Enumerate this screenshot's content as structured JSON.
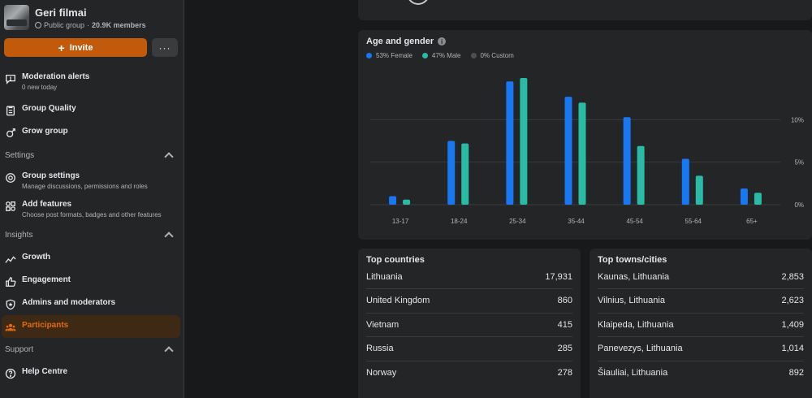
{
  "group": {
    "name": "Geri filmai",
    "privacy": "Public group",
    "separator": "·",
    "members": "20.9K members"
  },
  "actions": {
    "invite_label": "Invite",
    "more_label": "···"
  },
  "nav": {
    "moderation": {
      "label": "Moderation alerts",
      "sub": "0 new today"
    },
    "quality": {
      "label": "Group Quality"
    },
    "grow": {
      "label": "Grow group"
    },
    "settings_section": "Settings",
    "group_settings": {
      "label": "Group settings",
      "sub": "Manage discussions, permissions and roles"
    },
    "add_features": {
      "label": "Add features",
      "sub": "Choose post formats, badges and other features"
    },
    "insights_section": "Insights",
    "growth": {
      "label": "Growth"
    },
    "engagement": {
      "label": "Engagement"
    },
    "admins": {
      "label": "Admins and moderators"
    },
    "participants": {
      "label": "Participants"
    },
    "support_section": "Support",
    "help": {
      "label": "Help Centre"
    }
  },
  "colors": {
    "female": "#1877f2",
    "male": "#2abba7",
    "custom": "#4e4f50",
    "accent": "#e46a0e"
  },
  "chart_data": {
    "type": "bar",
    "title": "Age and gender",
    "categories": [
      "13-17",
      "18-24",
      "25-34",
      "35-44",
      "45-54",
      "55-64",
      "65+"
    ],
    "series": [
      {
        "name": "53% Female",
        "values": [
          1.0,
          7.5,
          14.5,
          12.7,
          10.3,
          5.4,
          1.9
        ]
      },
      {
        "name": "47% Male",
        "values": [
          0.6,
          7.2,
          14.9,
          12.0,
          6.9,
          3.4,
          1.4
        ]
      },
      {
        "name": "0% Custom",
        "values": [
          0,
          0,
          0,
          0,
          0,
          0,
          0
        ]
      }
    ],
    "yticks": [
      "0%",
      "5%",
      "10%"
    ],
    "ylim": [
      0,
      15
    ],
    "grid": true,
    "legend_position": "top-left"
  },
  "countries": {
    "title": "Top countries",
    "rows": [
      {
        "name": "Lithuania",
        "value": "17,931"
      },
      {
        "name": "United Kingdom",
        "value": "860"
      },
      {
        "name": "Vietnam",
        "value": "415"
      },
      {
        "name": "Russia",
        "value": "285"
      },
      {
        "name": "Norway",
        "value": "278"
      }
    ]
  },
  "towns": {
    "title": "Top towns/cities",
    "rows": [
      {
        "name": "Kaunas, Lithuania",
        "value": "2,853"
      },
      {
        "name": "Vilnius, Lithuania",
        "value": "2,623"
      },
      {
        "name": "Klaipeda, Lithuania",
        "value": "1,409"
      },
      {
        "name": "Panevezys, Lithuania",
        "value": "1,014"
      },
      {
        "name": "Šiauliai, Lithuania",
        "value": "892"
      }
    ]
  }
}
